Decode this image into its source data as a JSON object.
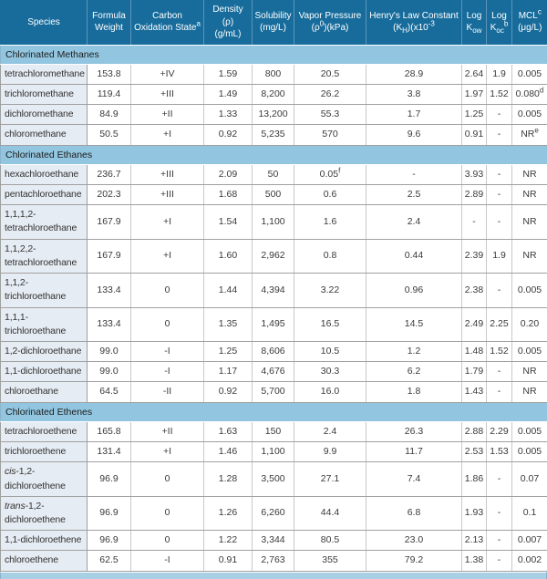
{
  "colors": {
    "header_bg": "#176C9C",
    "header_text": "#FFFFFF",
    "section_bg": "#92C5DF",
    "species_bg": "#E6ECF3",
    "grid_horizontal": "#A0A0A0",
    "grid_vertical": "#C8C8C8",
    "bottom_strip": "#A9CFE4",
    "body_text": "#333333"
  },
  "table": {
    "columns": [
      {
        "id": "species",
        "label": "Species"
      },
      {
        "id": "formula_weight",
        "label": "Formula\nWeight"
      },
      {
        "id": "carbon_oxidation_state",
        "label": "Carbon\nOxidation State^(a)"
      },
      {
        "id": "density",
        "label": "Density (ρ)\n(g/mL)"
      },
      {
        "id": "solubility",
        "label": "Solubility\n(mg/L)"
      },
      {
        "id": "vapor_pressure",
        "label": "Vapor Pressure\n(ρ^(0))(kPa)"
      },
      {
        "id": "henrys_law_constant",
        "label": "Henry's Law Constant\n(K_(H))(x10^(-3)"
      },
      {
        "id": "log_kow",
        "label": "Log\nK_(ow)"
      },
      {
        "id": "log_koc",
        "label": "Log\nK_(oc)^(b)"
      },
      {
        "id": "mcl",
        "label": "MCL^(c)\n(μg/L)"
      }
    ],
    "sections": [
      {
        "label": "Chlorinated Methanes",
        "rows": [
          {
            "species": "tetrachloromethane",
            "values": [
              "153.8",
              "+IV",
              "1.59",
              "800",
              "20.5",
              "28.9",
              "2.64",
              "1.9",
              "0.005"
            ]
          },
          {
            "species": "trichloromethane",
            "values": [
              "119.4",
              "+III",
              "1.49",
              "8,200",
              "26.2",
              "3.8",
              "1.97",
              "1.52",
              "0.080^(d)"
            ]
          },
          {
            "species": "dichloromethane",
            "values": [
              "84.9",
              "+II",
              "1.33",
              "13,200",
              "55.3",
              "1.7",
              "1.25",
              "-",
              "0.005"
            ]
          },
          {
            "species": "chloromethane",
            "values": [
              "50.5",
              "+I",
              "0.92",
              "5,235",
              "570",
              "9.6",
              "0.91",
              "-",
              "NR^(e)"
            ]
          }
        ]
      },
      {
        "label": "Chlorinated Ethanes",
        "rows": [
          {
            "species": "hexachloroethane",
            "values": [
              "236.7",
              "+III",
              "2.09",
              "50",
              "0.05^(f)",
              "-",
              "3.93",
              "-",
              "NR"
            ]
          },
          {
            "species": "pentachloroethane",
            "values": [
              "202.3",
              "+III",
              "1.68",
              "500",
              "0.6",
              "2.5",
              "2.89",
              "-",
              "NR"
            ]
          },
          {
            "species": "1,1,1,2-tetrachloroethane",
            "values": [
              "167.9",
              "+I",
              "1.54",
              "1,100",
              "1.6",
              "2.4",
              "-",
              "-",
              "NR"
            ]
          },
          {
            "species": "1,1,2,2-tetrachloroethane",
            "values": [
              "167.9",
              "+I",
              "1.60",
              "2,962",
              "0.8",
              "0.44",
              "2.39",
              "1.9",
              "NR"
            ]
          },
          {
            "species": "1,1,2-trichloroethane",
            "values": [
              "133.4",
              "0",
              "1.44",
              "4,394",
              "3.22",
              "0.96",
              "2.38",
              "-",
              "0.005"
            ]
          },
          {
            "species": "1,1,1-trichloroethane",
            "values": [
              "133.4",
              "0",
              "1.35",
              "1,495",
              "16.5",
              "14.5",
              "2.49",
              "2.25",
              "0.20"
            ]
          },
          {
            "species": "1,2-dichloroethane",
            "values": [
              "99.0",
              "-I",
              "1.25",
              "8,606",
              "10.5",
              "1.2",
              "1.48",
              "1.52",
              "0.005"
            ]
          },
          {
            "species": "1,1-dichloroethane",
            "values": [
              "99.0",
              "-I",
              "1.17",
              "4,676",
              "30.3",
              "6.2",
              "1.79",
              "-",
              "NR"
            ]
          },
          {
            "species": "chloroethane",
            "values": [
              "64.5",
              "-II",
              "0.92",
              "5,700",
              "16.0",
              "1.8",
              "1.43",
              "-",
              "NR"
            ]
          }
        ]
      },
      {
        "label": "Chlorinated Ethenes",
        "rows": [
          {
            "species": "tetrachloroethene",
            "values": [
              "165.8",
              "+II",
              "1.63",
              "150",
              "2.4",
              "26.3",
              "2.88",
              "2.29",
              "0.005"
            ]
          },
          {
            "species": "trichloroethene",
            "values": [
              "131.4",
              "+I",
              "1.46",
              "1,100",
              "9.9",
              "11.7",
              "2.53",
              "1.53",
              "0.005"
            ]
          },
          {
            "species": "/(cis)-1,2-dichloroethene",
            "values": [
              "96.9",
              "0",
              "1.28",
              "3,500",
              "27.1",
              "7.4",
              "1.86",
              "-",
              "0.07"
            ]
          },
          {
            "species": "/(trans)-1,2-dichloroethene",
            "values": [
              "96.9",
              "0",
              "1.26",
              "6,260",
              "44.4",
              "6.8",
              "1.93",
              "-",
              "0.1"
            ]
          },
          {
            "species": "1,1-dichloroethene",
            "values": [
              "96.9",
              "0",
              "1.22",
              "3,344",
              "80.5",
              "23.0",
              "2.13",
              "-",
              "0.007"
            ]
          },
          {
            "species": "chloroethene",
            "values": [
              "62.5",
              "-I",
              "0.91",
              "2,763",
              "355",
              "79.2",
              "1.38",
              "-",
              "0.002"
            ]
          }
        ]
      }
    ]
  }
}
